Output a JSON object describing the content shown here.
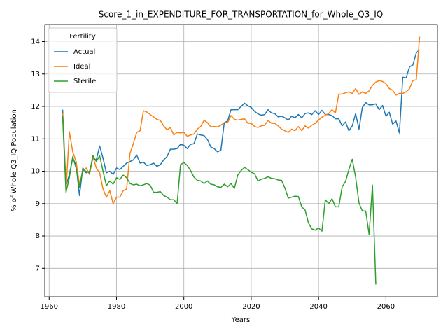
{
  "chart_data": {
    "type": "line",
    "title": "Score_1_in_EXPENDITURE_FOR_TRANSPORTATION_for_Whole_Q3_IQ",
    "x_label": "Years",
    "y_label": "% of Whole Q3_IQ Population",
    "legend_title": "Fertility",
    "legend": "upper left",
    "grid": true,
    "x": [
      1964,
      1965,
      1966,
      1967,
      1968,
      1969,
      1970,
      1971,
      1972,
      1973,
      1974,
      1975,
      1976,
      1977,
      1978,
      1979,
      1980,
      1981,
      1982,
      1983,
      1984,
      1985,
      1986,
      1987,
      1988,
      1989,
      1990,
      1991,
      1992,
      1993,
      1994,
      1995,
      1996,
      1997,
      1998,
      1999,
      2000,
      2001,
      2002,
      2003,
      2004,
      2005,
      2006,
      2007,
      2008,
      2009,
      2010,
      2011,
      2012,
      2013,
      2014,
      2015,
      2016,
      2017,
      2018,
      2019,
      2020,
      2021,
      2022,
      2023,
      2024,
      2025,
      2026,
      2027,
      2028,
      2029,
      2030,
      2031,
      2032,
      2033,
      2034,
      2035,
      2036,
      2037,
      2038,
      2039,
      2040,
      2041,
      2042,
      2043,
      2044,
      2045,
      2046,
      2047,
      2048,
      2049,
      2050,
      2051,
      2052,
      2053,
      2054,
      2055,
      2056,
      2057,
      2058,
      2059,
      2060,
      2061,
      2062,
      2063,
      2064,
      2065,
      2066,
      2067,
      2068,
      2069,
      2070
    ],
    "series": [
      {
        "name": "Actual",
        "color": "#1f77b4",
        "values": [
          11.9,
          9.55,
          9.9,
          10.4,
          10.2,
          9.25,
          10.1,
          9.95,
          10.0,
          10.4,
          10.35,
          10.78,
          10.4,
          9.95,
          10.0,
          9.9,
          10.1,
          10.05,
          10.15,
          10.25,
          10.3,
          10.35,
          10.5,
          10.25,
          10.28,
          10.18,
          10.2,
          10.25,
          10.15,
          10.2,
          10.35,
          10.45,
          10.68,
          10.68,
          10.7,
          10.83,
          10.8,
          10.7,
          10.83,
          10.85,
          11.15,
          11.12,
          11.1,
          10.98,
          10.75,
          10.7,
          10.6,
          10.65,
          11.5,
          11.55,
          11.9,
          11.9,
          11.9,
          12.0,
          12.1,
          12.02,
          11.97,
          11.85,
          11.77,
          11.73,
          11.75,
          11.9,
          11.8,
          11.78,
          11.68,
          11.7,
          11.65,
          11.58,
          11.7,
          11.65,
          11.75,
          11.65,
          11.78,
          11.8,
          11.75,
          11.87,
          11.75,
          11.88,
          11.75,
          11.75,
          11.72,
          11.62,
          11.62,
          11.4,
          11.52,
          11.25,
          11.4,
          11.78,
          11.3,
          11.97,
          12.12,
          12.05,
          12.05,
          12.08,
          11.9,
          12.03,
          11.7,
          11.82,
          11.45,
          11.55,
          11.18,
          12.9,
          12.88,
          13.22,
          13.28,
          13.65,
          13.75
        ]
      },
      {
        "name": "Ideal",
        "color": "#ff7f0e",
        "values": [
          11.8,
          9.4,
          11.22,
          10.6,
          10.3,
          9.6,
          10.0,
          10.1,
          9.9,
          10.45,
          10.1,
          9.95,
          9.45,
          9.2,
          9.4,
          9.0,
          9.2,
          9.2,
          9.4,
          9.45,
          10.55,
          10.85,
          11.2,
          11.25,
          11.87,
          11.83,
          11.75,
          11.68,
          11.6,
          11.57,
          11.4,
          11.28,
          11.35,
          11.12,
          11.2,
          11.18,
          11.2,
          11.08,
          11.12,
          11.15,
          11.3,
          11.38,
          11.57,
          11.5,
          11.37,
          11.38,
          11.37,
          11.42,
          11.5,
          11.5,
          11.72,
          11.6,
          11.58,
          11.6,
          11.62,
          11.48,
          11.48,
          11.38,
          11.35,
          11.4,
          11.42,
          11.57,
          11.48,
          11.48,
          11.4,
          11.3,
          11.25,
          11.2,
          11.3,
          11.25,
          11.38,
          11.25,
          11.4,
          11.33,
          11.42,
          11.48,
          11.58,
          11.67,
          11.73,
          11.78,
          11.9,
          11.8,
          12.38,
          12.38,
          12.42,
          12.45,
          12.4,
          12.55,
          12.37,
          12.45,
          12.4,
          12.48,
          12.65,
          12.75,
          12.8,
          12.77,
          12.7,
          12.55,
          12.5,
          12.35,
          12.4,
          12.4,
          12.45,
          12.55,
          12.8,
          12.82,
          14.15
        ]
      },
      {
        "name": "Sterile",
        "color": "#2ca02c",
        "values": [
          11.7,
          9.35,
          9.8,
          10.45,
          10.1,
          9.5,
          10.05,
          10.0,
          9.95,
          10.48,
          10.3,
          10.48,
          10.0,
          9.55,
          9.7,
          9.6,
          9.8,
          9.75,
          9.88,
          9.8,
          9.62,
          9.58,
          9.6,
          9.55,
          9.58,
          9.62,
          9.57,
          9.35,
          9.35,
          9.37,
          9.25,
          9.2,
          9.12,
          9.12,
          9.0,
          10.2,
          10.27,
          10.18,
          10.02,
          9.82,
          9.72,
          9.7,
          9.62,
          9.7,
          9.6,
          9.58,
          9.52,
          9.5,
          9.6,
          9.52,
          9.62,
          9.47,
          9.88,
          10.02,
          10.12,
          10.05,
          9.97,
          9.92,
          9.7,
          9.75,
          9.78,
          9.83,
          9.78,
          9.77,
          9.73,
          9.72,
          9.48,
          9.17,
          9.2,
          9.23,
          9.22,
          8.9,
          8.8,
          8.4,
          8.22,
          8.18,
          8.25,
          8.15,
          9.12,
          9.0,
          9.15,
          8.9,
          8.9,
          9.52,
          9.68,
          10.05,
          10.37,
          9.82,
          9.02,
          8.77,
          8.77,
          8.05,
          9.57,
          6.5,
          null,
          null,
          null,
          null,
          null,
          null,
          null,
          null,
          null,
          null,
          null,
          null,
          null
        ]
      }
    ],
    "xlim": [
      1958.7,
      2075.3
    ],
    "xticks": [
      1960,
      1980,
      2000,
      2020,
      2040,
      2060
    ],
    "ylim": [
      6.12,
      14.53
    ],
    "yticks": [
      7,
      8,
      9,
      10,
      11,
      12,
      13,
      14
    ]
  }
}
